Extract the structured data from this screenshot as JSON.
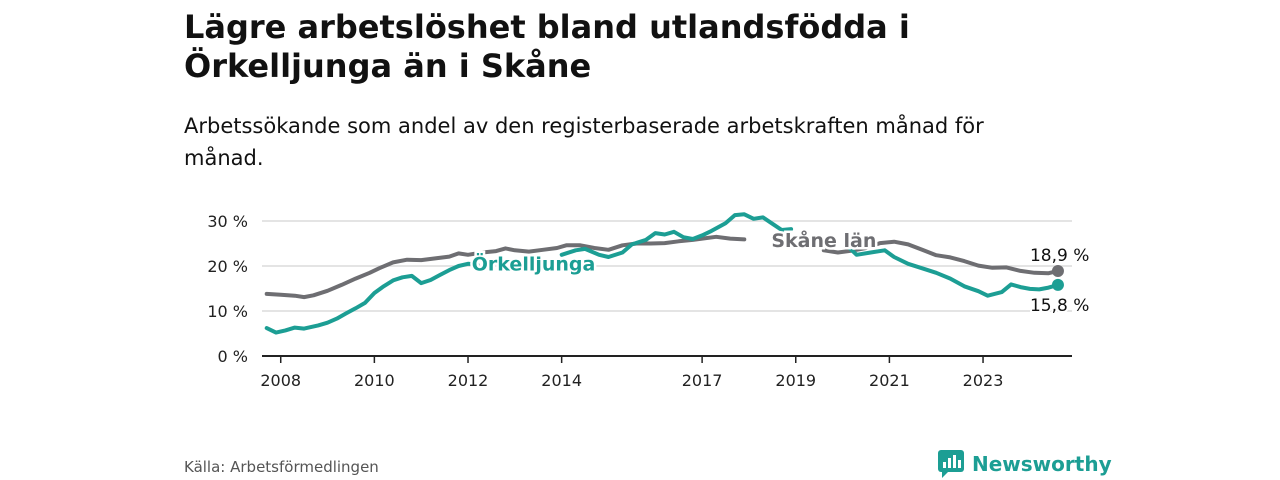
{
  "title": "Lägre arbetslöshet bland utlandsfödda i Örkelljunga än i Skåne",
  "subtitle": "Arbetssökande som andel av den registerbaserade arbetskraften månad för månad.",
  "source": "Källa: Arbetsförmedlingen",
  "brand": "Newsworthy",
  "colors": {
    "orkelljunga": "#1c9e94",
    "skane": "#6e6e72",
    "grid": "#dcdcdc",
    "axis": "#222222"
  },
  "chart_data": {
    "type": "line",
    "ylabel": "",
    "xlabel": "",
    "ylim": [
      0,
      30
    ],
    "y_ticks": [
      0,
      10,
      20,
      30
    ],
    "y_tick_labels": [
      "0 %",
      "10 %",
      "20 %",
      "30 %"
    ],
    "x_range": [
      2007.6,
      2024.9
    ],
    "x_ticks": [
      2008,
      2010,
      2012,
      2014,
      2017,
      2019,
      2021,
      2023
    ],
    "x_tick_labels": [
      "2008",
      "2010",
      "2012",
      "2014",
      "2017",
      "2019",
      "2021",
      "2023"
    ],
    "series": [
      {
        "name": "Skåne län",
        "key": "skane",
        "end_label": "18,9 %",
        "segments": [
          [
            [
              2007.7,
              13.8
            ],
            [
              2008.0,
              13.6
            ],
            [
              2008.3,
              13.4
            ],
            [
              2008.5,
              13.1
            ],
            [
              2008.7,
              13.5
            ],
            [
              2009.0,
              14.5
            ],
            [
              2009.3,
              15.8
            ],
            [
              2009.6,
              17.2
            ],
            [
              2009.9,
              18.5
            ],
            [
              2010.1,
              19.5
            ],
            [
              2010.4,
              20.8
            ],
            [
              2010.7,
              21.4
            ],
            [
              2011.0,
              21.3
            ],
            [
              2011.3,
              21.7
            ],
            [
              2011.6,
              22.1
            ],
            [
              2011.8,
              22.8
            ],
            [
              2012.0,
              22.5
            ],
            [
              2012.3,
              23.0
            ],
            [
              2012.6,
              23.3
            ],
            [
              2012.8,
              23.9
            ],
            [
              2013.0,
              23.5
            ],
            [
              2013.3,
              23.2
            ],
            [
              2013.6,
              23.6
            ],
            [
              2013.9,
              24.0
            ],
            [
              2014.1,
              24.6
            ],
            [
              2014.4,
              24.6
            ],
            [
              2014.7,
              24.0
            ],
            [
              2015.0,
              23.6
            ],
            [
              2015.3,
              24.6
            ],
            [
              2015.6,
              25.0
            ],
            [
              2015.9,
              25.0
            ],
            [
              2016.2,
              25.1
            ],
            [
              2016.5,
              25.5
            ],
            [
              2016.8,
              25.8
            ],
            [
              2017.0,
              26.1
            ],
            [
              2017.3,
              26.5
            ],
            [
              2017.6,
              26.1
            ],
            [
              2017.9,
              25.9
            ]
          ],
          [
            [
              2019.6,
              23.5
            ],
            [
              2019.9,
              23.0
            ],
            [
              2020.2,
              23.4
            ],
            [
              2020.5,
              24.0
            ],
            [
              2020.8,
              25.1
            ],
            [
              2021.1,
              25.4
            ],
            [
              2021.4,
              24.8
            ],
            [
              2021.7,
              23.6
            ],
            [
              2022.0,
              22.4
            ],
            [
              2022.3,
              21.9
            ],
            [
              2022.6,
              21.1
            ],
            [
              2022.9,
              20.1
            ],
            [
              2023.2,
              19.6
            ],
            [
              2023.5,
              19.7
            ],
            [
              2023.8,
              18.9
            ],
            [
              2024.1,
              18.5
            ],
            [
              2024.4,
              18.4
            ],
            [
              2024.6,
              18.9
            ]
          ]
        ]
      },
      {
        "name": "Örkelljunga",
        "key": "orkelljunga",
        "end_label": "15,8 %",
        "segments": [
          [
            [
              2007.7,
              6.2
            ],
            [
              2007.9,
              5.2
            ],
            [
              2008.1,
              5.7
            ],
            [
              2008.3,
              6.3
            ],
            [
              2008.5,
              6.1
            ],
            [
              2008.8,
              6.8
            ],
            [
              2009.0,
              7.4
            ],
            [
              2009.2,
              8.3
            ],
            [
              2009.4,
              9.5
            ],
            [
              2009.6,
              10.6
            ],
            [
              2009.8,
              11.8
            ],
            [
              2010.0,
              14.0
            ],
            [
              2010.2,
              15.5
            ],
            [
              2010.4,
              16.8
            ],
            [
              2010.6,
              17.5
            ],
            [
              2010.8,
              17.8
            ],
            [
              2011.0,
              16.2
            ],
            [
              2011.2,
              16.9
            ],
            [
              2011.4,
              18.0
            ],
            [
              2011.6,
              19.1
            ],
            [
              2011.8,
              20.0
            ],
            [
              2012.0,
              20.5
            ],
            [
              2012.2,
              20.3
            ]
          ],
          [
            [
              2014.0,
              22.5
            ],
            [
              2014.3,
              23.5
            ],
            [
              2014.5,
              23.8
            ],
            [
              2014.8,
              22.5
            ],
            [
              2015.0,
              22.0
            ],
            [
              2015.3,
              23.0
            ],
            [
              2015.5,
              24.8
            ],
            [
              2015.8,
              25.8
            ],
            [
              2016.0,
              27.3
            ],
            [
              2016.2,
              27.0
            ],
            [
              2016.4,
              27.6
            ],
            [
              2016.6,
              26.4
            ],
            [
              2016.8,
              26.0
            ],
            [
              2017.0,
              26.8
            ],
            [
              2017.2,
              27.8
            ],
            [
              2017.5,
              29.5
            ],
            [
              2017.7,
              31.3
            ],
            [
              2017.9,
              31.5
            ],
            [
              2018.1,
              30.5
            ],
            [
              2018.3,
              30.8
            ],
            [
              2018.5,
              29.4
            ],
            [
              2018.7,
              28.0
            ],
            [
              2018.9,
              28.2
            ]
          ],
          [
            [
              2020.1,
              24.5
            ],
            [
              2020.3,
              22.5
            ],
            [
              2020.6,
              23.0
            ],
            [
              2020.9,
              23.5
            ],
            [
              2021.1,
              22.0
            ],
            [
              2021.4,
              20.5
            ],
            [
              2021.7,
              19.5
            ],
            [
              2022.0,
              18.5
            ],
            [
              2022.3,
              17.2
            ],
            [
              2022.6,
              15.5
            ],
            [
              2022.9,
              14.4
            ],
            [
              2023.1,
              13.4
            ],
            [
              2023.4,
              14.2
            ],
            [
              2023.6,
              15.9
            ],
            [
              2023.8,
              15.3
            ],
            [
              2024.0,
              14.9
            ],
            [
              2024.2,
              14.8
            ],
            [
              2024.4,
              15.2
            ],
            [
              2024.6,
              15.8
            ]
          ]
        ]
      }
    ],
    "series_labels": [
      {
        "text": "Örkelljunga",
        "key": "orkelljunga",
        "x": 2013.4,
        "y": 19.0
      },
      {
        "text": "Skåne län",
        "key": "skane",
        "x": 2019.6,
        "y": 24.2
      }
    ]
  }
}
